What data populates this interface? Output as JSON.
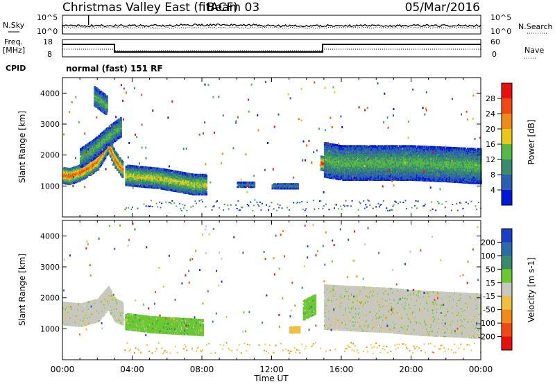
{
  "header": {
    "title": "Christmas Valley East (fitACF)",
    "beam": "Beam 03",
    "date": "05/Mar/2016"
  },
  "sky_panel": {
    "left_label": "N.Sky",
    "right_label": "N.Search",
    "ticks_left": [
      "10^5",
      "10^0"
    ],
    "ticks_right": [
      "10^5",
      "10^0"
    ]
  },
  "freq_panel": {
    "left_label_1": "Freq.",
    "left_label_2": "[MHz]",
    "right_label": "Nave",
    "ticks_left": [
      "18",
      "8"
    ],
    "ticks_right": [
      "60",
      "0"
    ]
  },
  "cpid": {
    "label": "CPID",
    "value": "normal (fast) 151 RF"
  },
  "chart_data": [
    {
      "type": "heatmap",
      "name": "power",
      "xlabel": "Time UT",
      "ylabel": "Slant Range [km]",
      "x_ticks": [
        "00:00",
        "04:00",
        "08:00",
        "12:00",
        "16:00",
        "20:00",
        "00:00"
      ],
      "y_ticks": [
        "1000",
        "2000",
        "3000",
        "4000"
      ],
      "colorbar_label": "Power [dB]",
      "colorbar_ticks": [
        "4",
        "8",
        "12",
        "16",
        "20",
        "24",
        "28"
      ],
      "colors": [
        "#0018d8",
        "#2d5fb0",
        "#3a8a6e",
        "#55b848",
        "#e8c81e",
        "#f08a1a",
        "#f04a14",
        "#e80f0f"
      ],
      "bands": [
        {
          "t": [
            0.0,
            0.4,
            0.9,
            1.5,
            2.0,
            2.6,
            3.0,
            3.4
          ],
          "r": [
            1350,
            1320,
            1420,
            1600,
            1800,
            2350,
            1850,
            1550
          ],
          "w": 260,
          "lvl": 6
        },
        {
          "t": [
            3.6,
            4.5,
            5.5,
            6.5,
            7.5,
            8.2
          ],
          "r": [
            1350,
            1300,
            1250,
            1150,
            1050,
            1050
          ],
          "w": 320,
          "lvl": 4
        },
        {
          "t": [
            1.0,
            1.8,
            2.6,
            3.3
          ],
          "r": [
            1900,
            2200,
            2600,
            2900
          ],
          "w": 300,
          "lvl": 3
        },
        {
          "t": [
            1.8,
            2.5
          ],
          "r": [
            3900,
            3600
          ],
          "w": 300,
          "lvl": 3
        },
        {
          "t": [
            14.8,
            15.5,
            16.5,
            17.5,
            18.5,
            19.5,
            20.5,
            21.5,
            22.5,
            24.0
          ],
          "r": [
            1750,
            1650,
            1600,
            1600,
            1650,
            1550,
            1450,
            1400,
            1350,
            1300
          ],
          "w": 220,
          "lvl": 7
        },
        {
          "t": [
            15.0,
            16.0,
            18.0,
            20.0,
            22.0,
            24.0
          ],
          "r": [
            1850,
            1750,
            1750,
            1750,
            1700,
            1650
          ],
          "w": 550,
          "lvl": 3
        },
        {
          "t": [
            10.0,
            11.0
          ],
          "r": [
            1050,
            1050
          ],
          "w": 80,
          "lvl": 2
        },
        {
          "t": [
            12.0,
            13.5
          ],
          "r": [
            1000,
            1000
          ],
          "w": 80,
          "lvl": 2
        }
      ]
    },
    {
      "type": "heatmap",
      "name": "velocity",
      "xlabel": "Time UT",
      "ylabel": "Slant Range [km]",
      "x_ticks": [
        "00:00",
        "04:00",
        "08:00",
        "12:00",
        "16:00",
        "20:00",
        "00:00"
      ],
      "y_ticks": [
        "1000",
        "2000",
        "3000",
        "4000"
      ],
      "colorbar_label": "Velocity [m s-1]",
      "colorbar_ticks": [
        "200",
        "100",
        "50",
        "15",
        "-15",
        "-50",
        "-100",
        "-200"
      ],
      "colors": [
        "#1b3ec8",
        "#2c6aa8",
        "#3a8a6e",
        "#6cc830",
        "#c8c8c0",
        "#f0c040",
        "#f08a1a",
        "#f04a14",
        "#e80f0f"
      ],
      "bands": [
        {
          "t": [
            0.0,
            1.0,
            2.0,
            2.6,
            3.0,
            3.4
          ],
          "r": [
            1500,
            1450,
            1600,
            2000,
            1600,
            1500
          ],
          "w": 360,
          "lvl": 4
        },
        {
          "t": [
            3.6,
            5.0,
            6.5,
            8.0
          ],
          "r": [
            1250,
            1150,
            1100,
            1050
          ],
          "w": 260,
          "lvl": 3
        },
        {
          "t": [
            15.0,
            16.5,
            18.5,
            20.5,
            22.5,
            24.0
          ],
          "r": [
            1700,
            1650,
            1600,
            1500,
            1450,
            1400
          ],
          "w": 700,
          "lvl": 4
        },
        {
          "t": [
            13.8,
            14.5
          ],
          "r": [
            1600,
            1800
          ],
          "w": 300,
          "lvl": 3
        },
        {
          "t": [
            13.0,
            13.6
          ],
          "r": [
            980,
            980
          ],
          "w": 100,
          "lvl": 5
        }
      ]
    }
  ]
}
